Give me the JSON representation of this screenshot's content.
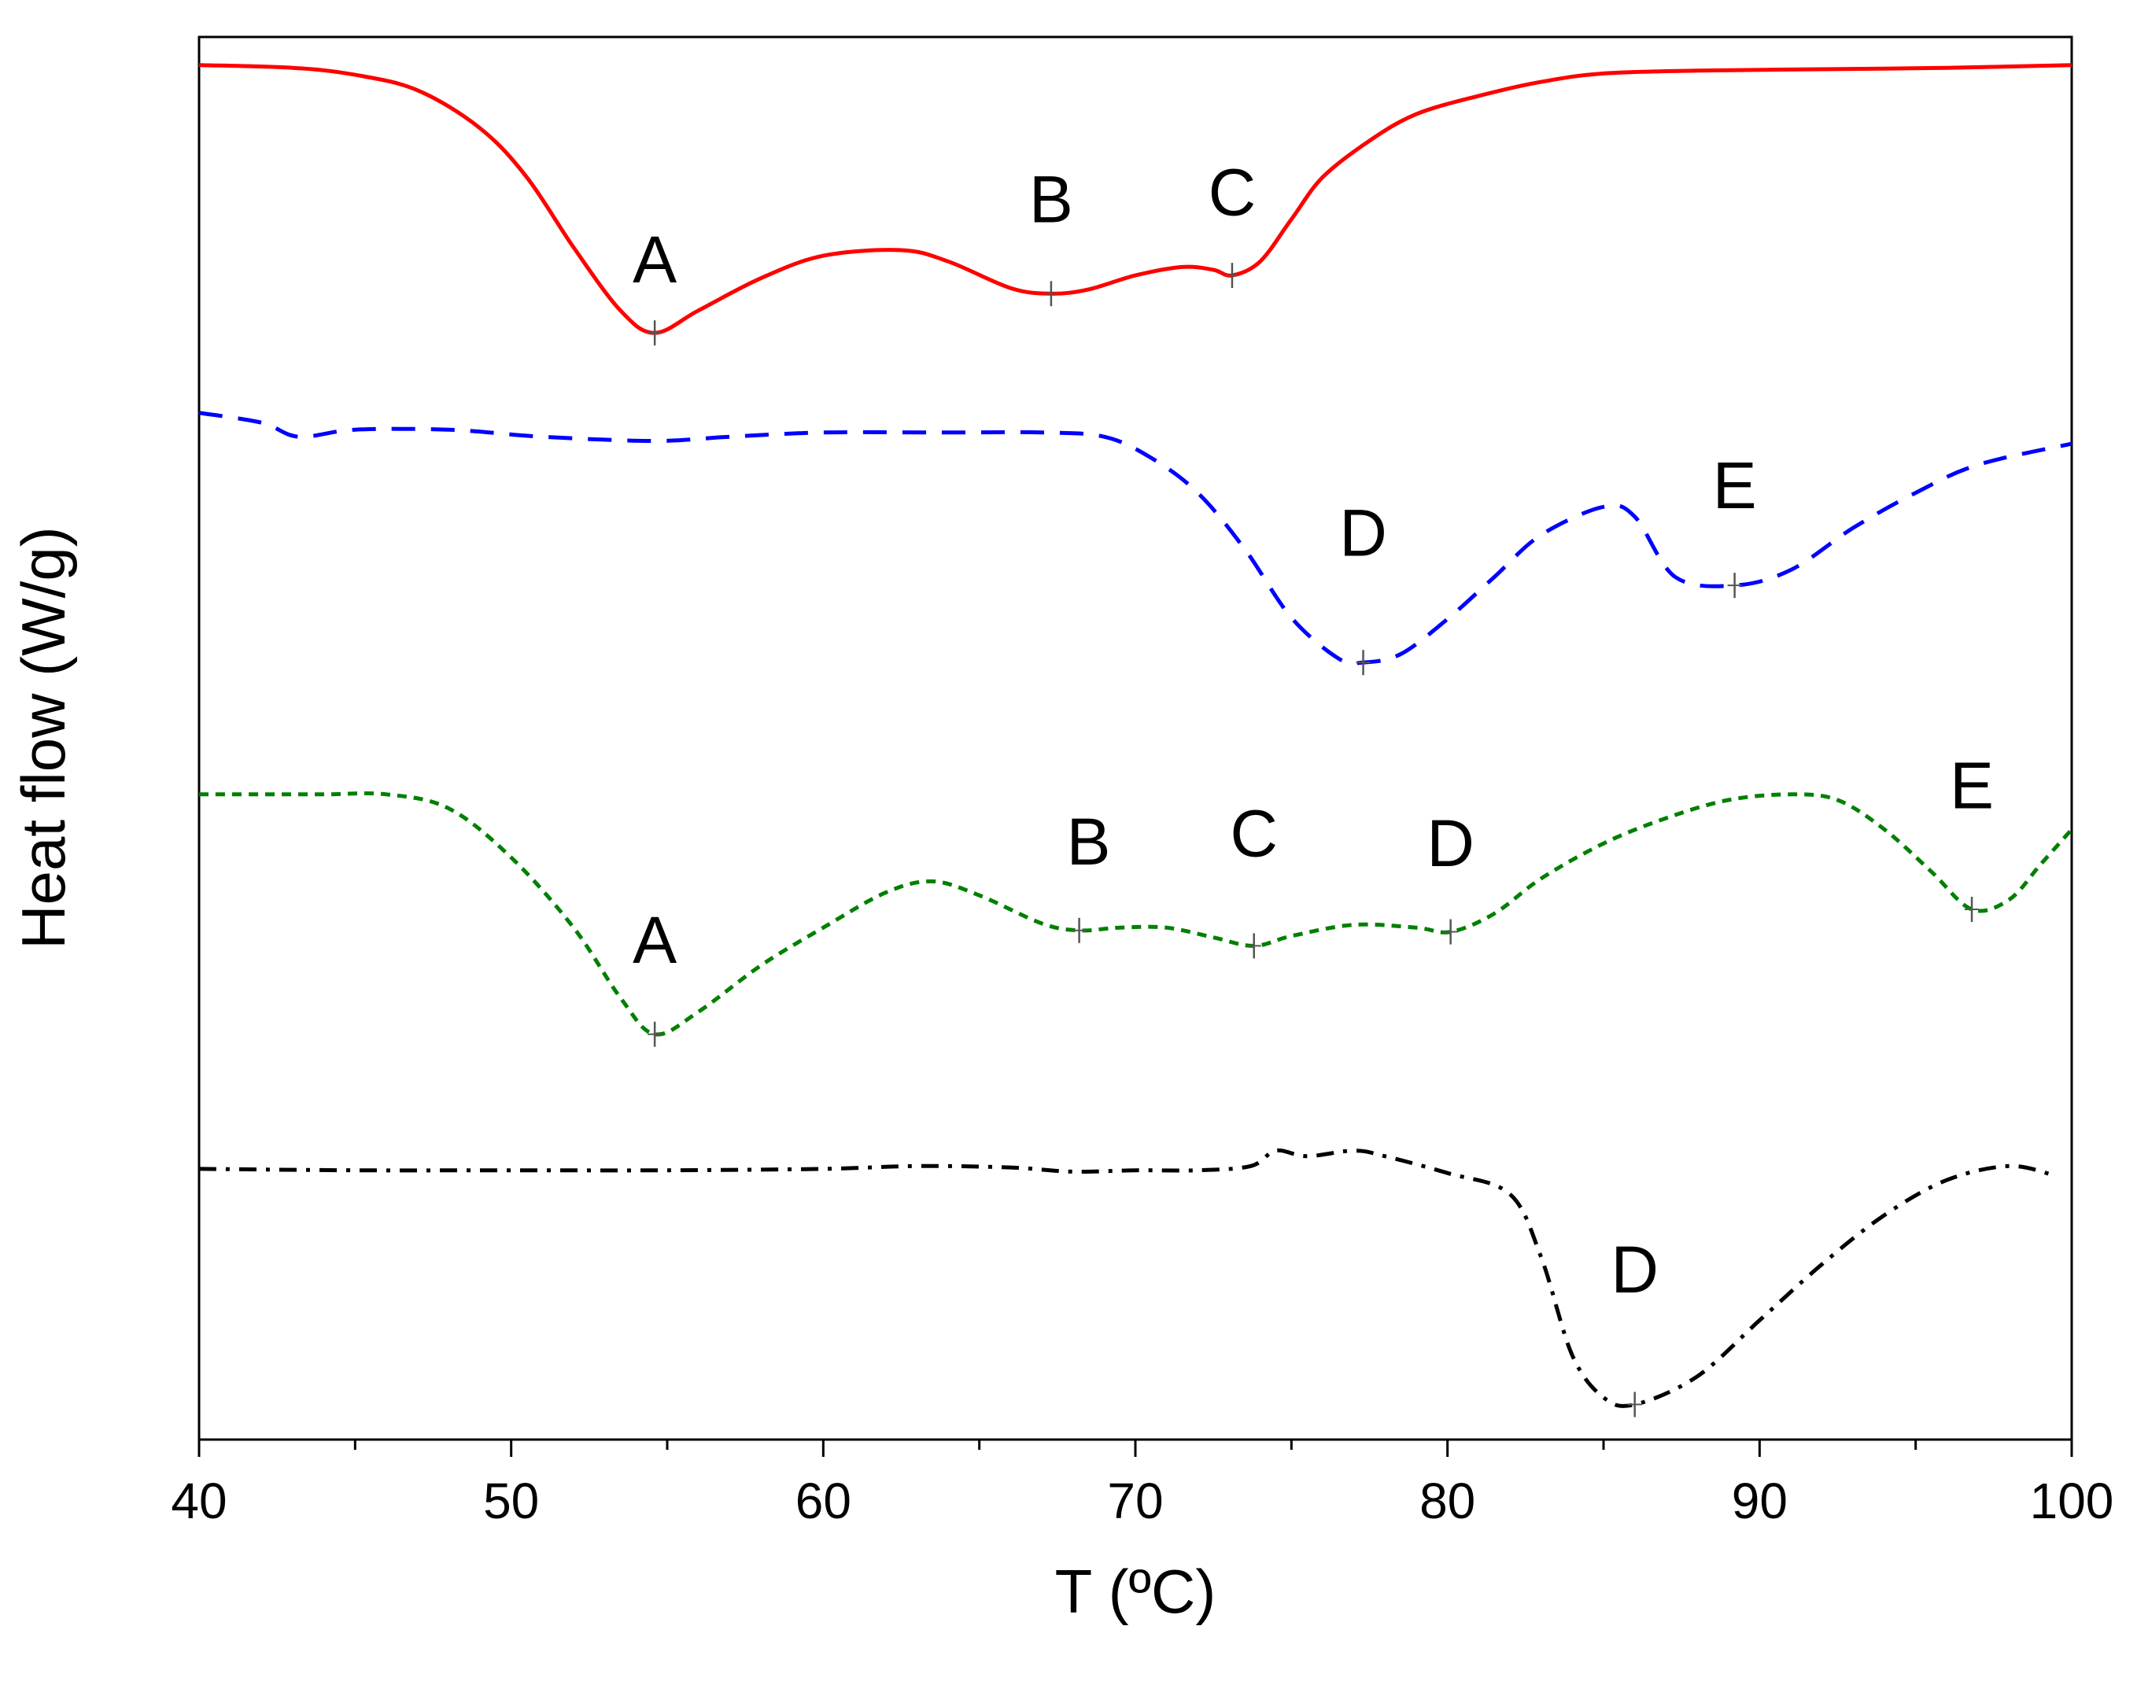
{
  "chart_data": {
    "type": "line",
    "title": "",
    "xlabel": "T (ºC)",
    "ylabel": "Heat flow (W/g)",
    "xlim": [
      40,
      100
    ],
    "ylim": [
      0,
      100
    ],
    "x_ticks": [
      40,
      50,
      60,
      70,
      80,
      90,
      100
    ],
    "x_tick_labels": [
      "40",
      "50",
      "60",
      "70",
      "80",
      "90",
      "100"
    ],
    "grid": false,
    "series": [
      {
        "name": "red-solid",
        "color": "#ff0000",
        "dash": "solid",
        "x": [
          40,
          43,
          45,
          47,
          49,
          50.5,
          52,
          53.5,
          54.6,
          56,
          58,
          60,
          62.5,
          64,
          66,
          67.3,
          68.5,
          70,
          71.5,
          72.5,
          73.1,
          74,
          75,
          76,
          77.5,
          79,
          81,
          83,
          85,
          88,
          92,
          96,
          100
        ],
        "values": [
          98,
          97.8,
          97.3,
          96.2,
          93.5,
          90,
          85,
          80.5,
          78.9,
          80.5,
          82.8,
          84.4,
          84.8,
          84,
          82.1,
          81.7,
          82,
          83,
          83.6,
          83.4,
          83,
          84,
          87,
          90,
          92.6,
          94.5,
          95.8,
          96.8,
          97.4,
          97.6,
          97.7,
          97.8,
          98
        ]
      },
      {
        "name": "blue-dash",
        "color": "#0000ff",
        "dash": "long",
        "x": [
          40,
          42,
          43.2,
          45,
          48,
          51,
          54.6,
          57,
          60,
          64,
          67,
          69,
          70.5,
          72,
          73.5,
          75,
          76.5,
          77.3,
          78.5,
          80,
          81.5,
          83,
          85,
          86,
          87.3,
          89.2,
          91,
          93,
          95,
          97,
          100
        ],
        "values": [
          73.2,
          72.5,
          71.5,
          72,
          72,
          71.5,
          71.2,
          71.5,
          71.8,
          71.8,
          71.8,
          71.5,
          70,
          67.5,
          63.5,
          58.6,
          55.7,
          55.4,
          56,
          58.5,
          61.5,
          64.5,
          66.5,
          65.8,
          61.5,
          60.9,
          62,
          65,
          67.5,
          69.5,
          71
        ]
      },
      {
        "name": "green-dot",
        "color": "#008000",
        "dash": "dot",
        "x": [
          40,
          42,
          44,
          46,
          48,
          50,
          52,
          53.5,
          54.6,
          56,
          58,
          60,
          62,
          63.5,
          65,
          67,
          68.2,
          69.5,
          71,
          72.5,
          73.8,
          75,
          77,
          79,
          80.1,
          81.5,
          83,
          85,
          87,
          89,
          91,
          92.5,
          94,
          95.5,
          96.8,
          98,
          99,
          100
        ],
        "values": [
          46,
          46,
          46,
          46,
          45,
          41.5,
          36.5,
          31.5,
          28.9,
          30.5,
          33.8,
          36.5,
          39,
          39.8,
          38.8,
          36.8,
          36.3,
          36.5,
          36.5,
          35.8,
          35.2,
          35.9,
          36.7,
          36.5,
          36.2,
          37.5,
          40,
          42.5,
          44.3,
          45.6,
          46,
          45.6,
          43.5,
          40.5,
          37.8,
          38.5,
          41,
          43.5
        ]
      },
      {
        "name": "black-dashdot",
        "color": "#000000",
        "dash": "dashdot",
        "x": [
          40,
          45,
          50,
          55,
          60,
          63,
          66,
          68,
          70,
          72,
          73.7,
          74.5,
          75.5,
          77,
          78,
          80,
          82,
          83,
          84,
          85,
          86,
          88,
          90,
          92,
          94,
          96,
          98,
          99.5
        ],
        "values": [
          19.3,
          19.2,
          19.2,
          19.2,
          19.3,
          19.5,
          19.4,
          19.1,
          19.2,
          19.2,
          19.5,
          20.6,
          20.2,
          20.6,
          20.2,
          19,
          17.5,
          13,
          6,
          3,
          2.5,
          4.5,
          8.5,
          12.5,
          16,
          18.5,
          19.5,
          18.8
        ]
      }
    ],
    "annotations": [
      {
        "text": "A",
        "series": 0,
        "x": 54.6,
        "y": 78.9,
        "label_x": 54.6,
        "label_y": 82.5
      },
      {
        "text": "B",
        "series": 0,
        "x": 67.3,
        "y": 81.7,
        "label_x": 67.3,
        "label_y": 86.8
      },
      {
        "text": "C",
        "series": 0,
        "x": 73.1,
        "y": 83.0,
        "label_x": 73.1,
        "label_y": 87.3
      },
      {
        "text": "D",
        "series": 1,
        "x": 77.3,
        "y": 55.4,
        "label_x": 77.3,
        "label_y": 63.0
      },
      {
        "text": "E",
        "series": 1,
        "x": 89.2,
        "y": 60.9,
        "label_x": 89.2,
        "label_y": 66.4
      },
      {
        "text": "A",
        "series": 2,
        "x": 54.6,
        "y": 28.9,
        "label_x": 54.6,
        "label_y": 34.0
      },
      {
        "text": "B",
        "series": 2,
        "x": 68.2,
        "y": 36.3,
        "label_x": 68.5,
        "label_y": 41.0
      },
      {
        "text": "C",
        "series": 2,
        "x": 73.8,
        "y": 35.2,
        "label_x": 73.8,
        "label_y": 41.6
      },
      {
        "text": "D",
        "series": 2,
        "x": 80.1,
        "y": 36.2,
        "label_x": 80.1,
        "label_y": 40.9
      },
      {
        "text": "E",
        "series": 2,
        "x": 96.8,
        "y": 37.8,
        "label_x": 96.8,
        "label_y": 45.0
      },
      {
        "text": "D",
        "series": 3,
        "x": 86.0,
        "y": 2.5,
        "label_x": 86.0,
        "label_y": 10.5
      }
    ]
  }
}
